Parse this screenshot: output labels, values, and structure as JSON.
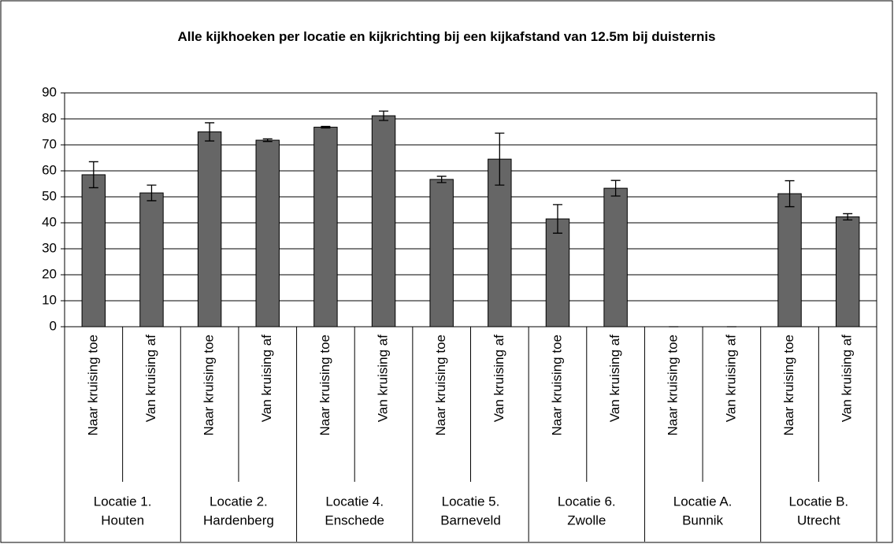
{
  "chart_data": {
    "type": "bar",
    "title": "Alle kijkhoeken per locatie en kijkrichting bij een kijkafstand van 12.5m bij duisternis",
    "categories": [
      "Naar kruising toe",
      "Van kruising af",
      "Naar kruising toe",
      "Van kruising af",
      "Naar kruising toe",
      "Van kruising af",
      "Naar kruising toe",
      "Van kruising af",
      "Naar kruising toe",
      "Van kruising af",
      "Naar kruising toe",
      "Van kruising af",
      "Naar kruising toe",
      "Van kruising af"
    ],
    "groups": [
      [
        "Locatie 1.",
        "Houten"
      ],
      [
        "Locatie 2.",
        "Hardenberg"
      ],
      [
        "Locatie 4.",
        "Enschede"
      ],
      [
        "Locatie 5.",
        "Barneveld"
      ],
      [
        "Locatie 6.",
        "Zwolle"
      ],
      [
        "Locatie A.",
        "Bunnik"
      ],
      [
        "Locatie B.",
        "Utrecht"
      ]
    ],
    "values": [
      58.5,
      51.5,
      75,
      71.8,
      76.8,
      81.2,
      56.7,
      64.5,
      41.5,
      53.3,
      0,
      0,
      51.2,
      42.3
    ],
    "errors": [
      5,
      3,
      3.5,
      0.5,
      0.3,
      1.8,
      1.2,
      10,
      5.5,
      3,
      0,
      0,
      5,
      1.2
    ],
    "color": "#666666",
    "ylim": [
      0,
      90
    ],
    "yticks": [
      0,
      10,
      20,
      30,
      40,
      50,
      60,
      70,
      80,
      90
    ],
    "grid": true
  }
}
